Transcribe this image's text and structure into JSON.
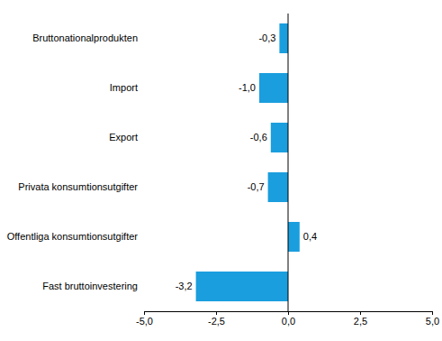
{
  "chart_data": {
    "type": "bar",
    "orientation": "horizontal",
    "categories": [
      "Bruttonationalprodukten",
      "Import",
      "Export",
      "Privata konsumtionsutgifter",
      "Offentliga konsumtionsutgifter",
      "Fast bruttoinvestering"
    ],
    "values": [
      -0.3,
      -1.0,
      -0.6,
      -0.7,
      0.4,
      -3.2
    ],
    "value_labels": [
      "-0,3",
      "-1,0",
      "-0,6",
      "-0,7",
      "0,4",
      "-3,2"
    ],
    "data_labels": true,
    "color": "#1a9ede",
    "xlim": [
      -5,
      5
    ],
    "xticks": [
      {
        "value": -5,
        "label": "-5,0"
      },
      {
        "value": -2.5,
        "label": "-2,5"
      },
      {
        "value": 0,
        "label": "0,0"
      },
      {
        "value": 2.5,
        "label": "2,5"
      },
      {
        "value": 5,
        "label": "5,0"
      }
    ]
  }
}
